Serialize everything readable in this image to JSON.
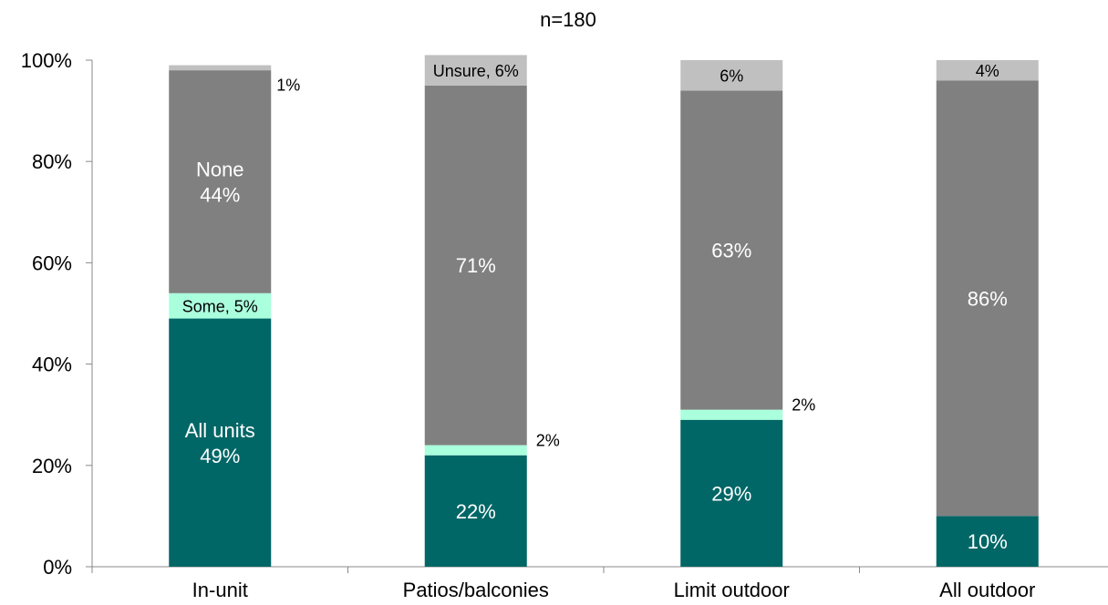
{
  "chart_data": {
    "type": "bar",
    "stacked": true,
    "title": "n=180",
    "xlabel": "",
    "ylabel": "",
    "ylim": [
      0,
      100
    ],
    "y_ticks": [
      "0%",
      "20%",
      "40%",
      "60%",
      "80%",
      "100%"
    ],
    "categories": [
      "In-unit",
      "Patios/balconies",
      "Limit outdoor",
      "All outdoor"
    ],
    "series": [
      {
        "name": "All units",
        "color": "#006666",
        "values": [
          49,
          22,
          29,
          10
        ]
      },
      {
        "name": "Some",
        "color": "#aaffdd",
        "values": [
          5,
          2,
          2,
          0
        ]
      },
      {
        "name": "None",
        "color": "#808080",
        "values": [
          44,
          71,
          63,
          86
        ]
      },
      {
        "name": "Unsure",
        "color": "#c0c0c0",
        "values": [
          1,
          6,
          6,
          4
        ]
      }
    ],
    "data_labels": [
      {
        "cat": 0,
        "series": 0,
        "lines": [
          "All units",
          "49%"
        ]
      },
      {
        "cat": 0,
        "series": 1,
        "lines": [
          "Some, 5%"
        ]
      },
      {
        "cat": 0,
        "series": 2,
        "lines": [
          "None",
          "44%"
        ]
      },
      {
        "cat": 0,
        "series": 3,
        "lines": [
          "1%"
        ]
      },
      {
        "cat": 1,
        "series": 0,
        "lines": [
          "22%"
        ]
      },
      {
        "cat": 1,
        "series": 1,
        "lines": [
          "2%"
        ]
      },
      {
        "cat": 1,
        "series": 2,
        "lines": [
          "71%"
        ]
      },
      {
        "cat": 1,
        "series": 3,
        "lines": [
          "Unsure, 6%"
        ]
      },
      {
        "cat": 2,
        "series": 0,
        "lines": [
          "29%"
        ]
      },
      {
        "cat": 2,
        "series": 1,
        "lines": [
          "2%"
        ]
      },
      {
        "cat": 2,
        "series": 2,
        "lines": [
          "63%"
        ]
      },
      {
        "cat": 2,
        "series": 3,
        "lines": [
          "6%"
        ]
      },
      {
        "cat": 3,
        "series": 0,
        "lines": [
          "10%"
        ]
      },
      {
        "cat": 3,
        "series": 2,
        "lines": [
          "86%"
        ]
      },
      {
        "cat": 3,
        "series": 3,
        "lines": [
          "4%"
        ]
      }
    ]
  }
}
